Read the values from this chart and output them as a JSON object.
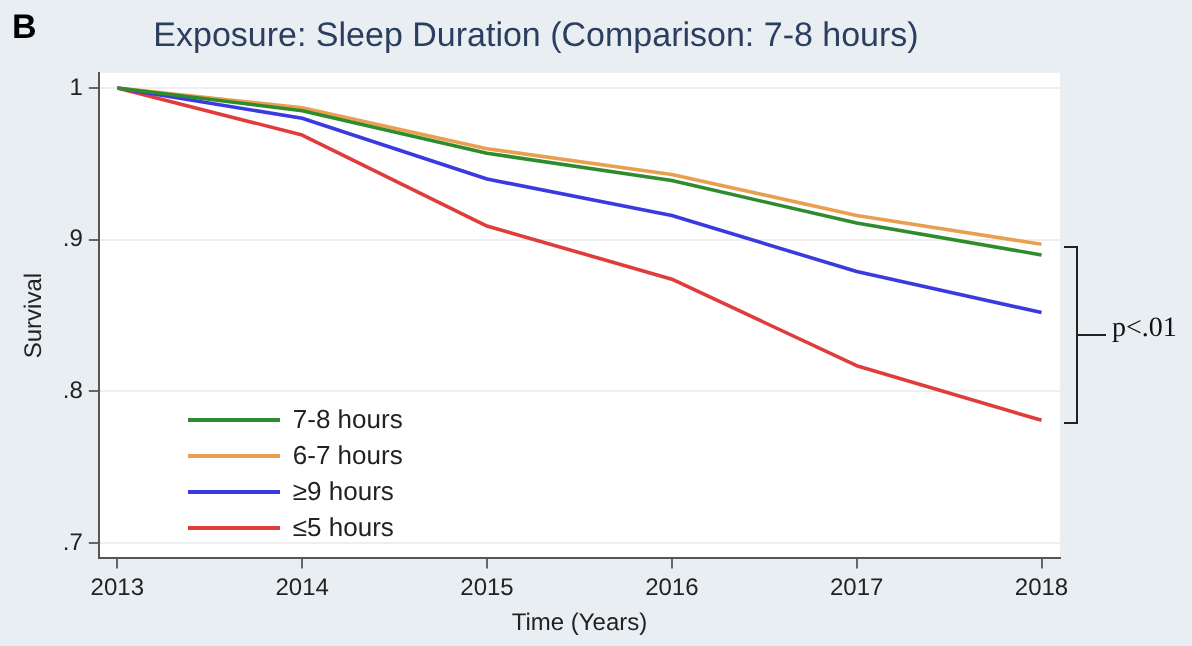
{
  "chart_data": {
    "type": "line",
    "title": "Exposure: Sleep Duration (Comparison: 7-8 hours)",
    "xlabel": "Time (Years)",
    "ylabel": "Survival",
    "x": [
      2013,
      2014,
      2015,
      2016,
      2017,
      2018
    ],
    "series": [
      {
        "name": "7-8 hours",
        "color": "#2e8b2e",
        "values": [
          1,
          0.985,
          0.957,
          0.939,
          0.911,
          0.89
        ]
      },
      {
        "name": "6-7 hours",
        "color": "#e8a050",
        "values": [
          1,
          0.987,
          0.96,
          0.943,
          0.916,
          0.897
        ]
      },
      {
        "name": "≥9 hours",
        "color": "#3a3ae0",
        "values": [
          1,
          0.98,
          0.94,
          0.916,
          0.879,
          0.852
        ]
      },
      {
        "name": "≤5 hours",
        "color": "#e03c3c",
        "values": [
          1,
          0.969,
          0.909,
          0.874,
          0.817,
          0.781
        ]
      }
    ],
    "xlim": [
      2012.9,
      2018.1
    ],
    "xticks": [
      2013,
      2014,
      2015,
      2016,
      2017,
      2018
    ],
    "ylim": [
      0.69,
      1.01
    ],
    "yticks": [
      {
        "value": 0.7,
        "label": ".7"
      },
      {
        "value": 0.8,
        "label": ".8"
      },
      {
        "value": 0.9,
        "label": ".9"
      },
      {
        "value": 1,
        "label": "1"
      }
    ],
    "grid": "y",
    "legend": "bottom left",
    "marker": "none",
    "line_style": "solid",
    "annotations": [
      "B",
      "p<.01"
    ]
  }
}
